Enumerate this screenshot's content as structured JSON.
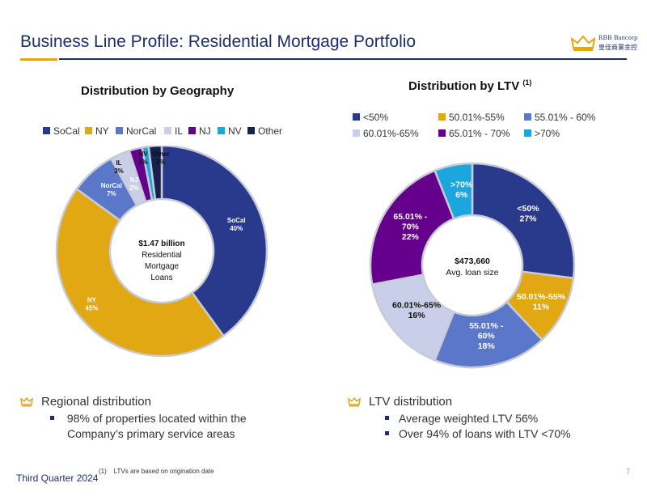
{
  "header": {
    "title": "Business Line Profile: Residential Mortgage Portfolio",
    "logo_en": "RBB Bancorp",
    "logo_zh": "皇佳商業金控"
  },
  "geo": {
    "title": "Distribution by Geography",
    "center_lines": [
      "$1.47 billion",
      "Residential",
      "Mortgage",
      "Loans"
    ],
    "legend": [
      {
        "name": "SoCal",
        "color": "#293a8c"
      },
      {
        "name": "NY",
        "color": "#e2a814"
      },
      {
        "name": "NorCal",
        "color": "#5a77c9"
      },
      {
        "name": "IL",
        "color": "#c9cfe8"
      },
      {
        "name": "NJ",
        "color": "#65008c"
      },
      {
        "name": "NV",
        "color": "#1ba7dd"
      },
      {
        "name": "Other",
        "color": "#16214f"
      }
    ]
  },
  "ltv": {
    "title": "Distribution by LTV",
    "title_sup": "(1)",
    "center_lines": [
      "$473,660",
      "Avg. loan size"
    ],
    "legend": [
      {
        "name": "<50%",
        "color": "#293a8c"
      },
      {
        "name": "50.01%-55%",
        "color": "#e2a814"
      },
      {
        "name": "55.01% - 60%",
        "color": "#5a77c9"
      },
      {
        "name": "60.01%-65%",
        "color": "#c9cfe8"
      },
      {
        "name": "65.01% - 70%",
        "color": "#65008c"
      },
      {
        "name": ">70%",
        "color": "#1ba7dd"
      }
    ]
  },
  "chart_data": [
    {
      "type": "pie",
      "title": "Distribution by Geography",
      "categories": [
        "SoCal",
        "NY",
        "NorCal",
        "IL",
        "NJ",
        "NV",
        "Other"
      ],
      "values": [
        40,
        45,
        7,
        3,
        2,
        1,
        2
      ],
      "labels": [
        [
          "SoCal",
          "40%"
        ],
        [
          "NY",
          "45%"
        ],
        [
          "NorCal",
          "7%"
        ],
        [
          "IL",
          "3%"
        ],
        [
          "NJ",
          "2%"
        ],
        [
          "NV",
          "1%"
        ],
        [
          "Other",
          "2%"
        ]
      ],
      "colors": [
        "#293a8c",
        "#e2a814",
        "#5a77c9",
        "#c9cfe8",
        "#65008c",
        "#1ba7dd",
        "#16214f"
      ],
      "legend": "top"
    },
    {
      "type": "pie",
      "title": "Distribution by LTV (1)",
      "categories": [
        "<50%",
        "50.01%-55%",
        "55.01% - 60%",
        "60.01%-65%",
        "65.01% - 70%",
        ">70%"
      ],
      "values": [
        27,
        11,
        18,
        16,
        22,
        6
      ],
      "labels": [
        [
          "<50%",
          "27%"
        ],
        [
          "50.01%-55%",
          "11%"
        ],
        [
          "55.01% -",
          "60%",
          "18%"
        ],
        [
          "60.01%-65%",
          "16%"
        ],
        [
          "65.01% -",
          "70%",
          "22%"
        ],
        [
          ">70%",
          "6%"
        ]
      ],
      "colors": [
        "#293a8c",
        "#e2a814",
        "#5a77c9",
        "#c9cfe8",
        "#65008c",
        "#1ba7dd"
      ],
      "legend": "top"
    }
  ],
  "bullets": {
    "left_head": "Regional distribution",
    "left_item_1": "98% of properties located within the",
    "left_item_2": "Company’s primary service areas",
    "right_head": "LTV distribution",
    "right_item_1": "Average weighted LTV 56%",
    "right_item_2": "Over 94% of loans with LTV <70%"
  },
  "footer": {
    "quarter": "Third Quarter 2024",
    "footnote_num": "(1)",
    "footnote_text": "LTVs are based on origination date",
    "page": "7"
  }
}
